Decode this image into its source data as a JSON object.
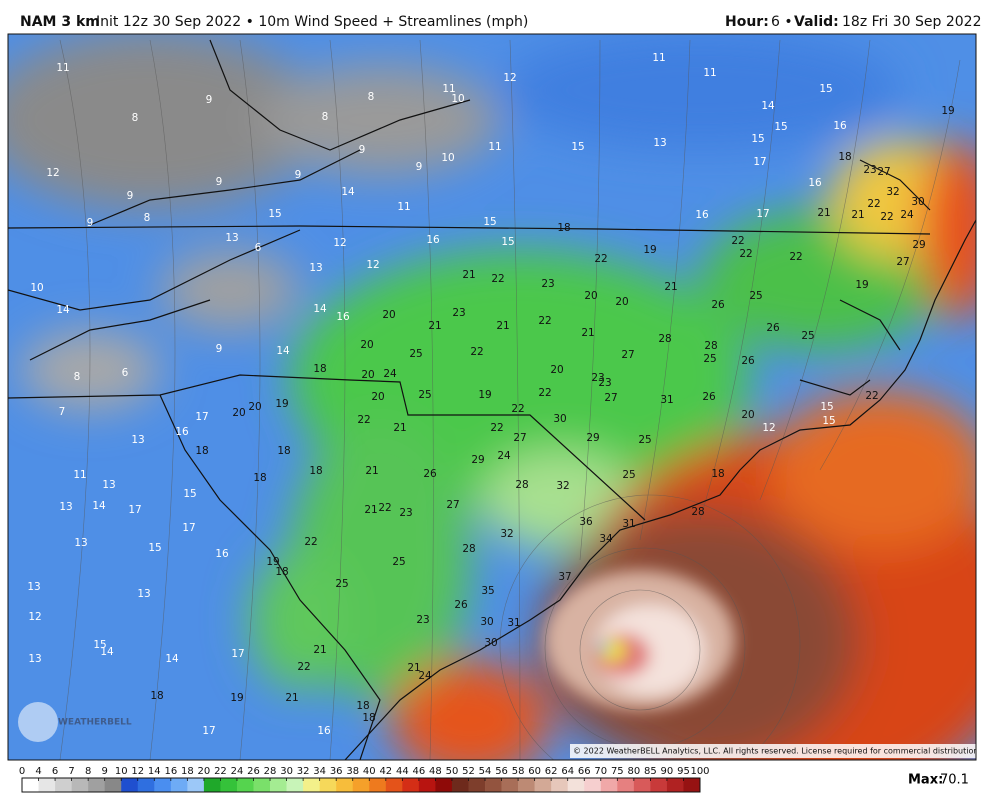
{
  "header": {
    "model": "NAM 3 km",
    "description": "Init 12z 30 Sep 2022 • 10m Wind Speed + Streamlines (mph)",
    "hour_label": "Hour:",
    "hour_value": "6 •",
    "valid_label": "Valid:",
    "valid_value": "18z Fri 30 Sep 2022"
  },
  "map": {
    "watermark": "WEATHERBELL",
    "copyright": "© 2022 WeatherBELL Analytics, LLC. All rights reserved. License required for commercial distribution.",
    "labels": [
      11,
      9,
      8,
      8,
      8,
      9,
      9,
      9,
      9,
      8,
      9,
      12,
      9,
      11,
      10,
      12,
      10,
      11,
      11,
      14,
      15,
      13,
      6,
      12,
      12,
      13,
      10,
      14,
      14,
      16,
      14,
      9,
      8,
      6,
      7,
      18,
      16,
      15,
      15,
      18,
      15,
      13,
      11,
      11,
      14,
      15,
      15,
      17,
      15,
      16,
      16,
      18,
      23,
      27,
      32,
      30,
      24,
      22,
      22,
      21,
      21,
      19,
      29,
      27,
      19,
      17,
      16,
      19,
      22,
      22,
      22,
      22,
      21,
      22,
      23,
      21,
      20,
      20,
      25,
      26,
      26,
      25,
      20,
      23,
      21,
      21,
      22,
      21,
      28,
      28,
      25,
      26,
      27,
      20,
      25,
      22,
      20,
      23,
      23,
      20,
      24,
      20,
      25,
      19,
      22,
      22,
      27,
      31,
      26,
      20,
      12,
      15,
      15,
      22,
      30,
      27,
      22,
      29,
      24,
      29,
      25,
      22,
      21,
      19,
      20,
      20,
      17,
      16,
      18,
      13,
      11,
      13,
      13,
      14,
      17,
      15,
      18,
      18,
      18,
      21,
      26,
      28,
      32,
      25,
      18,
      21,
      22,
      23,
      27,
      36,
      31,
      34,
      28,
      32,
      13,
      15,
      17,
      16,
      22,
      19,
      18,
      25,
      25,
      28,
      37,
      35,
      26,
      23,
      30,
      31,
      30,
      13,
      13,
      12,
      15,
      14,
      13,
      14,
      17,
      21,
      22,
      21,
      24,
      18,
      19,
      21,
      18,
      18,
      17,
      16
    ]
  },
  "colorbar": {
    "ticks": [
      0,
      4,
      6,
      7,
      8,
      9,
      10,
      12,
      14,
      16,
      18,
      20,
      22,
      24,
      26,
      28,
      30,
      32,
      34,
      36,
      38,
      40,
      42,
      44,
      46,
      48,
      50,
      52,
      54,
      56,
      58,
      60,
      62,
      64,
      66,
      70,
      75,
      80,
      85,
      90,
      95,
      100
    ],
    "colors": [
      "#ffffff",
      "#e6e6e6",
      "#cfcfcf",
      "#b8b8b8",
      "#a0a0a0",
      "#888888",
      "#1f4fcf",
      "#2f6fe0",
      "#4a8ef0",
      "#6eabf5",
      "#9cc8f8",
      "#1fa82a",
      "#35c23a",
      "#55d44e",
      "#7ae06a",
      "#a4ec92",
      "#c8f4b8",
      "#f3f08a",
      "#f6d85a",
      "#f7bd3b",
      "#f5a02a",
      "#ee7a1e",
      "#e4531a",
      "#d42e16",
      "#b81410",
      "#8f0a08",
      "#6e2a1c",
      "#7e3e2c",
      "#93543f",
      "#a86e58",
      "#bd8a74",
      "#d3a996",
      "#e6c7ba",
      "#f3e1da",
      "#f6cfcf",
      "#f0a8a8",
      "#e68080",
      "#d85a5a",
      "#c83a3a",
      "#b02222",
      "#961212"
    ],
    "max_label": "Max:",
    "max_value": "70.1"
  }
}
